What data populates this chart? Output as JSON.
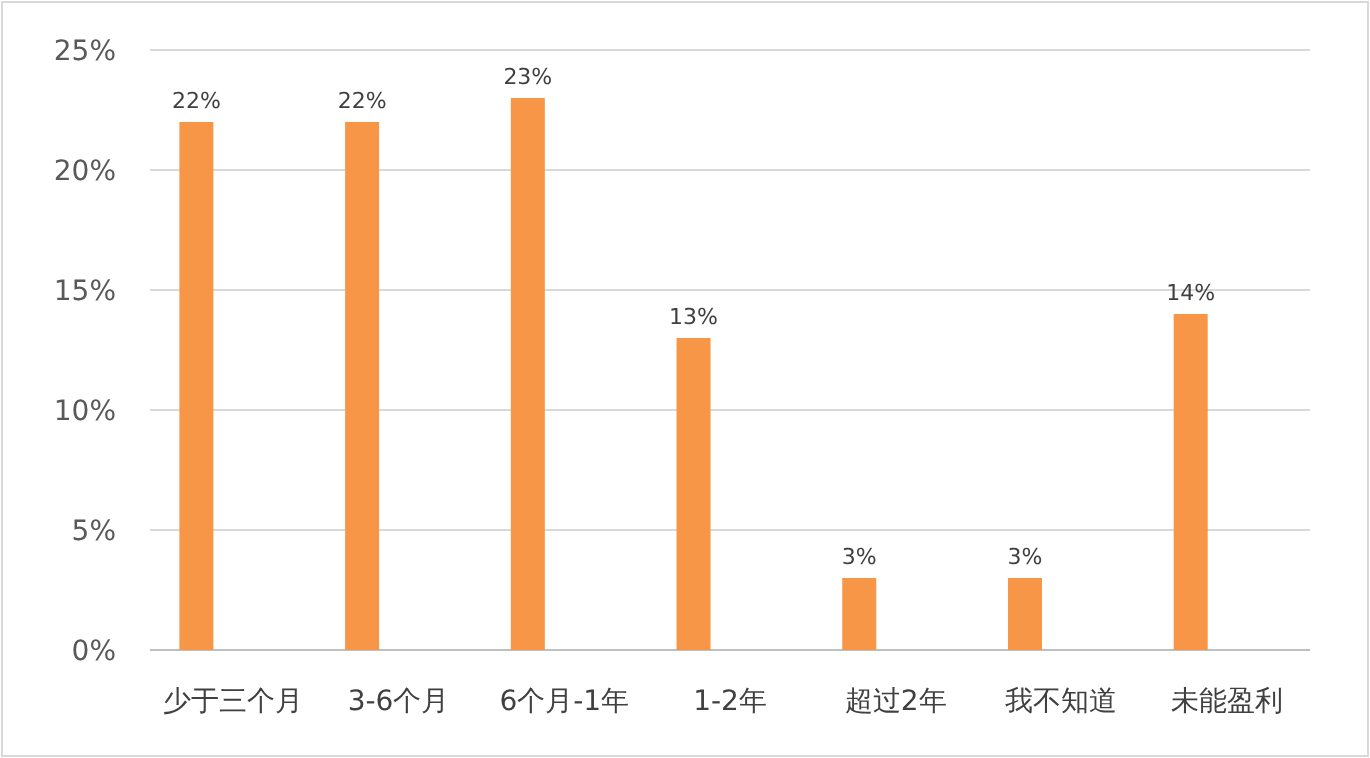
{
  "chart_data": {
    "type": "bar",
    "categories": [
      "少于三个月",
      "3-6个月",
      "6个月-1年",
      "1-2年",
      "超过2年",
      "我不知道",
      "未能盈利"
    ],
    "values": [
      22,
      22,
      23,
      13,
      3,
      3,
      14
    ],
    "value_labels": [
      "22%",
      "22%",
      "23%",
      "13%",
      "3%",
      "3%",
      "14%"
    ],
    "color": "#f79646",
    "ylim": [
      0,
      25
    ],
    "yticks": [
      {
        "value": 0,
        "label": "0%"
      },
      {
        "value": 5,
        "label": "5%"
      },
      {
        "value": 10,
        "label": "10%"
      },
      {
        "value": 15,
        "label": "15%"
      },
      {
        "value": 20,
        "label": "20%"
      },
      {
        "value": 25,
        "label": "25%"
      }
    ],
    "grid": "y"
  }
}
